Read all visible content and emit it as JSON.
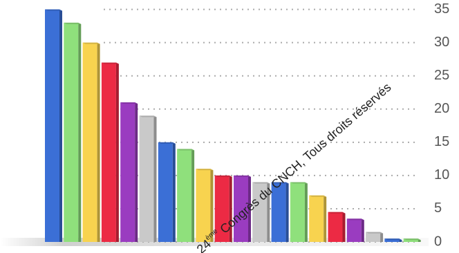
{
  "chart_data": {
    "type": "bar",
    "categories": [
      null,
      null,
      null,
      null,
      null,
      null,
      null,
      null,
      null,
      null,
      null,
      null,
      null,
      null,
      null,
      null,
      null,
      null,
      null,
      null
    ],
    "values": [
      35,
      33,
      30,
      27,
      21,
      19,
      15,
      14,
      11,
      10,
      10,
      9,
      9,
      9,
      7,
      4.5,
      3.5,
      1.5,
      0.5,
      0.5
    ],
    "colors": [
      "#3b6fd6",
      "#8fe07c",
      "#f8d34f",
      "#ec2a44",
      "#9a3cc0",
      "#c9c9c9",
      "#3b6fd6",
      "#8fe07c",
      "#f8d34f",
      "#ec2a44",
      "#9a3cc0",
      "#c9c9c9",
      "#3b6fd6",
      "#8fe07c",
      "#f8d34f",
      "#ec2a44",
      "#9a3cc0",
      "#c9c9c9",
      "#3b6fd6",
      "#8fe07c"
    ],
    "ylim": [
      0,
      36
    ],
    "yticks": [
      0,
      5,
      10,
      15,
      20,
      25,
      30,
      35
    ],
    "grid": true,
    "y_axis_side": "right",
    "watermark": {
      "number": "24",
      "superscript": "ème",
      "text": " Congrès du CNCH, Tous droits réservés"
    }
  }
}
